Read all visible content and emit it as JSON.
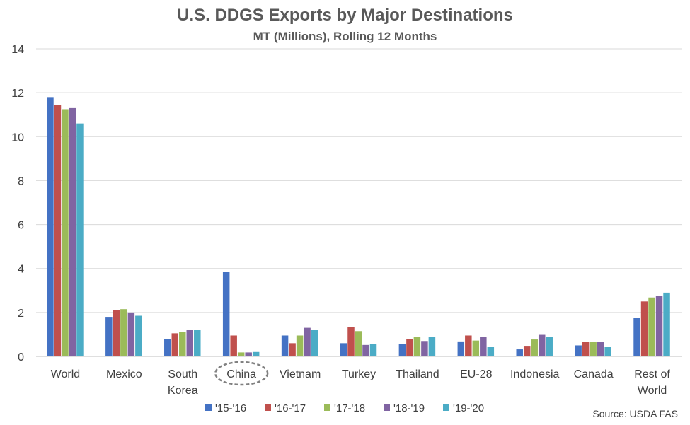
{
  "chart_data": {
    "type": "bar",
    "title": "U.S. DDGS Exports by Major Destinations",
    "subtitle": "MT (Millions), Rolling 12 Months",
    "categories": [
      "World",
      "Mexico",
      "South Korea",
      "China",
      "Vietnam",
      "Turkey",
      "Thailand",
      "EU-28",
      "Indonesia",
      "Canada",
      "Rest of World"
    ],
    "category_lines": [
      [
        "World"
      ],
      [
        "Mexico"
      ],
      [
        "South",
        "Korea"
      ],
      [
        "China"
      ],
      [
        "Vietnam"
      ],
      [
        "Turkey"
      ],
      [
        "Thailand"
      ],
      [
        "EU-28"
      ],
      [
        "Indonesia"
      ],
      [
        "Canada"
      ],
      [
        "Rest of",
        "World"
      ]
    ],
    "highlighted_category": "China",
    "series": [
      {
        "name": "'15-'16",
        "color": "#4472C4",
        "values": [
          11.8,
          1.8,
          0.8,
          3.85,
          0.95,
          0.6,
          0.55,
          0.68,
          0.32,
          0.5,
          1.75
        ]
      },
      {
        "name": "'16-'17",
        "color": "#C0504D",
        "values": [
          11.45,
          2.1,
          1.05,
          0.95,
          0.6,
          1.35,
          0.8,
          0.95,
          0.48,
          0.65,
          2.5
        ]
      },
      {
        "name": "'17-'18",
        "color": "#9BBB59",
        "values": [
          11.25,
          2.15,
          1.1,
          0.18,
          0.95,
          1.15,
          0.9,
          0.72,
          0.77,
          0.67,
          2.68
        ]
      },
      {
        "name": "'18-'19",
        "color": "#8064A2",
        "values": [
          11.3,
          2.0,
          1.2,
          0.18,
          1.3,
          0.52,
          0.7,
          0.9,
          0.98,
          0.67,
          2.75
        ]
      },
      {
        "name": "'19-'20",
        "color": "#4BACC6",
        "values": [
          10.6,
          1.85,
          1.22,
          0.2,
          1.2,
          0.55,
          0.9,
          0.45,
          0.9,
          0.42,
          2.9
        ]
      }
    ],
    "ylim": [
      0,
      14
    ],
    "yticks": [
      "0",
      "2",
      "4",
      "6",
      "8",
      "10",
      "12",
      "14"
    ],
    "grid": true,
    "legend_position": "bottom",
    "source": "Source: USDA FAS"
  }
}
